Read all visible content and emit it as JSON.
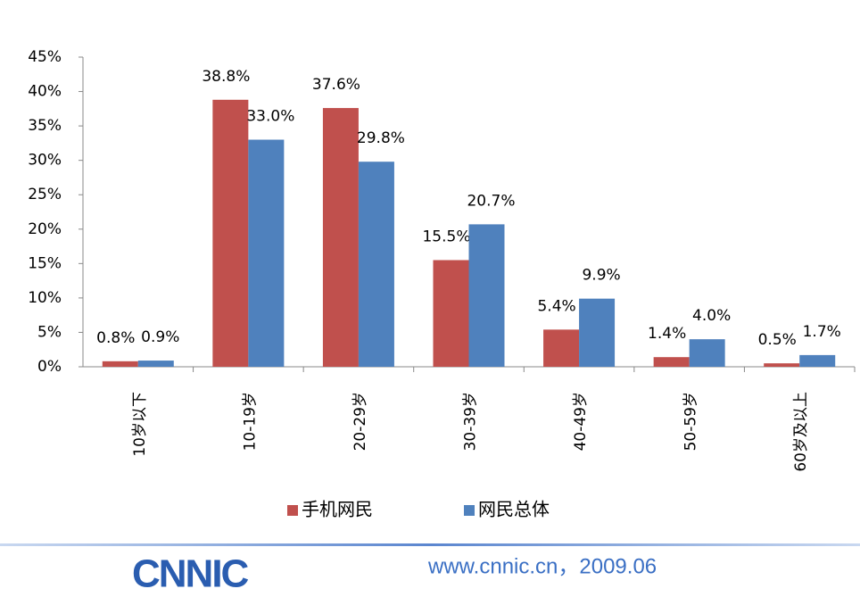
{
  "chart_data": {
    "type": "bar",
    "categories": [
      "10岁以下",
      "10-19岁",
      "20-29岁",
      "30-39岁",
      "40-49岁",
      "50-59岁",
      "60岁及以上"
    ],
    "series": [
      {
        "name": "手机网民",
        "color": "#c0504d",
        "values": [
          0.8,
          38.8,
          37.6,
          15.5,
          5.4,
          1.4,
          0.5
        ],
        "value_labels": [
          "0.8%",
          "38.8%",
          "37.6%",
          "15.5%",
          "5.4%",
          "1.4%",
          "0.5%"
        ]
      },
      {
        "name": "网民总体",
        "color": "#4f81bd",
        "values": [
          0.9,
          33.0,
          29.8,
          20.7,
          9.9,
          4.0,
          1.7
        ],
        "value_labels": [
          "0.9%",
          "33.0%",
          "29.8%",
          "20.7%",
          "9.9%",
          "4.0%",
          "1.7%"
        ]
      }
    ],
    "ylim": [
      0,
      45
    ],
    "yticks": [
      {
        "value": 0,
        "label": "0%"
      },
      {
        "value": 5,
        "label": "5%"
      },
      {
        "value": 10,
        "label": "10%"
      },
      {
        "value": 15,
        "label": "15%"
      },
      {
        "value": 20,
        "label": "20%"
      },
      {
        "value": 25,
        "label": "25%"
      },
      {
        "value": 30,
        "label": "30%"
      },
      {
        "value": 35,
        "label": "35%"
      },
      {
        "value": 40,
        "label": "40%"
      },
      {
        "value": 45,
        "label": "45%"
      }
    ],
    "legend": "bottom"
  },
  "footer": {
    "logo": "CNNIC",
    "source": "www.cnnic.cn，2009.06"
  }
}
